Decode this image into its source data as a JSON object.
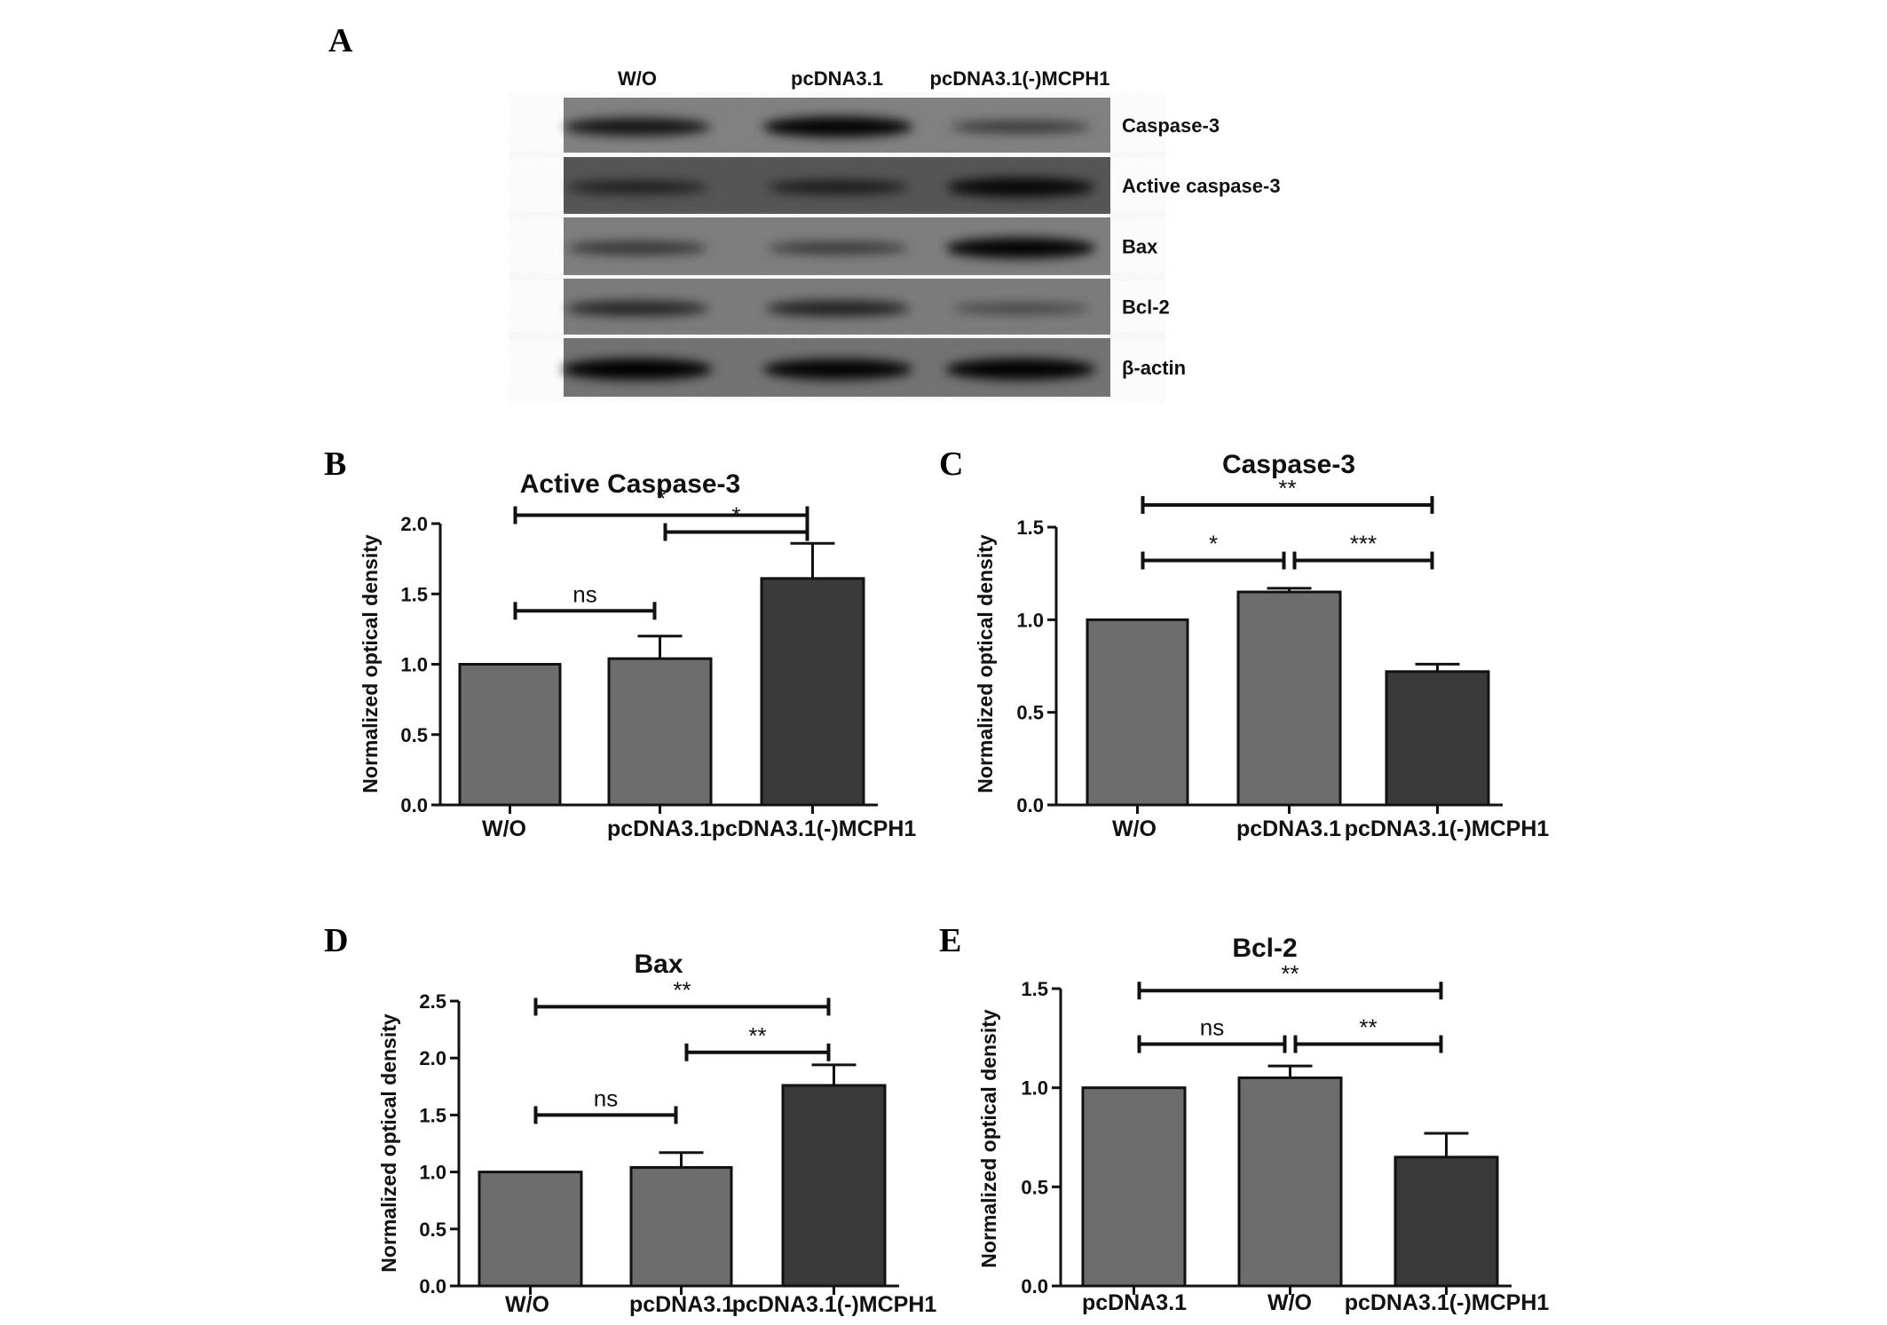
{
  "panels": [
    "A",
    "B",
    "C",
    "D",
    "E"
  ],
  "blot": {
    "lanes": [
      "W/O",
      "pcDNA3.1",
      "pcDNA3.1(-)MCPH1"
    ],
    "proteins": [
      {
        "name": "Caspase-3",
        "intensity": [
          0.75,
          0.95,
          0.35
        ],
        "bg": "#7d7d7d"
      },
      {
        "name": "Active caspase-3",
        "intensity": [
          0.45,
          0.5,
          0.85
        ],
        "bg": "#4f4f4f"
      },
      {
        "name": "Bax",
        "intensity": [
          0.4,
          0.35,
          0.95
        ],
        "bg": "#7a7a7a"
      },
      {
        "name": "Bcl-2",
        "intensity": [
          0.55,
          0.6,
          0.2
        ],
        "bg": "#777777"
      },
      {
        "name": "β-actin",
        "intensity": [
          1.0,
          0.95,
          0.98
        ],
        "bg": "#6e6e6e"
      }
    ]
  },
  "chart_data": [
    {
      "type": "bar",
      "title": "Active Caspase-3",
      "ylabel": "Normalized optical density",
      "categories": [
        "W/O",
        "pcDNA3.1",
        "pcDNA3.1(-)MCPH1"
      ],
      "values": [
        1.0,
        1.04,
        1.61
      ],
      "errors": [
        0.0,
        0.16,
        0.25
      ],
      "bar_colors": [
        "#6d6d6d",
        "#6d6d6d",
        "#3a3a3a"
      ],
      "ylim": [
        0,
        2.0
      ],
      "yticks": [
        "0.0",
        "0.5",
        "1.0",
        "1.5",
        "2.0"
      ],
      "significance": [
        {
          "from": 0,
          "to": 2,
          "label": "*",
          "y": 2.06
        },
        {
          "from": 1,
          "to": 2,
          "label": "*",
          "y": 1.94
        },
        {
          "from": 0,
          "to": 1,
          "label": "ns",
          "y": 1.38
        }
      ]
    },
    {
      "type": "bar",
      "title": "Caspase-3",
      "ylabel": "Normalized optical density",
      "categories": [
        "W/O",
        "pcDNA3.1",
        "pcDNA3.1(-)MCPH1"
      ],
      "values": [
        1.0,
        1.15,
        0.72
      ],
      "errors": [
        0.0,
        0.02,
        0.04
      ],
      "bar_colors": [
        "#6d6d6d",
        "#6d6d6d",
        "#3a3a3a"
      ],
      "ylim": [
        0,
        1.5
      ],
      "yticks": [
        "0.0",
        "0.5",
        "1.0",
        "1.5"
      ],
      "significance": [
        {
          "from": 0,
          "to": 2,
          "label": "**",
          "y": 1.62
        },
        {
          "from": 0,
          "to": 1,
          "label": "*",
          "y": 1.32
        },
        {
          "from": 1,
          "to": 2,
          "label": "***",
          "y": 1.32
        }
      ]
    },
    {
      "type": "bar",
      "title": "Bax",
      "ylabel": "Normalized optical density",
      "categories": [
        "W/O",
        "pcDNA3.1",
        "pcDNA3.1(-)MCPH1"
      ],
      "values": [
        1.0,
        1.04,
        1.76
      ],
      "errors": [
        0.0,
        0.13,
        0.18
      ],
      "bar_colors": [
        "#6d6d6d",
        "#6d6d6d",
        "#3a3a3a"
      ],
      "ylim": [
        0,
        2.5
      ],
      "yticks": [
        "0.0",
        "0.5",
        "1.0",
        "1.5",
        "2.0",
        "2.5"
      ],
      "significance": [
        {
          "from": 0,
          "to": 2,
          "label": "**",
          "y": 2.45
        },
        {
          "from": 1,
          "to": 2,
          "label": "**",
          "y": 2.05
        },
        {
          "from": 0,
          "to": 1,
          "label": "ns",
          "y": 1.5
        }
      ]
    },
    {
      "type": "bar",
      "title": "Bcl-2",
      "ylabel": "Normalized optical density",
      "categories": [
        "pcDNA3.1",
        "W/O",
        "pcDNA3.1(-)MCPH1"
      ],
      "values": [
        1.0,
        1.05,
        0.65
      ],
      "errors": [
        0.0,
        0.06,
        0.12
      ],
      "bar_colors": [
        "#6d6d6d",
        "#6d6d6d",
        "#3a3a3a"
      ],
      "ylim": [
        0,
        1.5
      ],
      "yticks": [
        "0.0",
        "0.5",
        "1.0",
        "1.5"
      ],
      "significance": [
        {
          "from": 0,
          "to": 2,
          "label": "**",
          "y": 1.49
        },
        {
          "from": 0,
          "to": 1,
          "label": "ns",
          "y": 1.22
        },
        {
          "from": 1,
          "to": 2,
          "label": "**",
          "y": 1.22
        }
      ]
    }
  ]
}
